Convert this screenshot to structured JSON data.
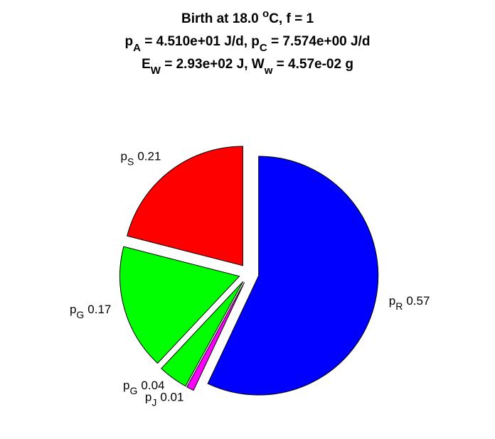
{
  "chart_data": {
    "type": "pie",
    "title": [
      [
        {
          "text": "Birth at 18.0 "
        },
        {
          "text": "o",
          "shift": "sup"
        },
        {
          "text": "C, f = 1"
        }
      ],
      [
        {
          "text": "p"
        },
        {
          "text": "A",
          "shift": "sub"
        },
        {
          "text": " = 4.510e+01 J/d, p"
        },
        {
          "text": "C",
          "shift": "sub"
        },
        {
          "text": " = 7.574e+00 J/d"
        }
      ],
      [
        {
          "text": "E"
        },
        {
          "text": "W",
          "shift": "sub"
        },
        {
          "text": " = 2.93e+02 J, W"
        },
        {
          "text": "w",
          "shift": "sub"
        },
        {
          "text": " = 4.57e-02 g"
        }
      ]
    ],
    "labels": [
      {
        "main": "p",
        "sub": "R"
      },
      {
        "main": "p",
        "sub": "J"
      },
      {
        "main": "p",
        "sub": "G"
      },
      {
        "main": "p",
        "sub": "G"
      },
      {
        "main": "p",
        "sub": "S"
      }
    ],
    "values": [
      0.57,
      0.01,
      0.04,
      0.17,
      0.21
    ],
    "colors": [
      "#0000ff",
      "#ff00ff",
      "#00ff00",
      "#00ff00",
      "#ff0000"
    ],
    "direction": "clockwise",
    "start": "top",
    "explode": true
  }
}
